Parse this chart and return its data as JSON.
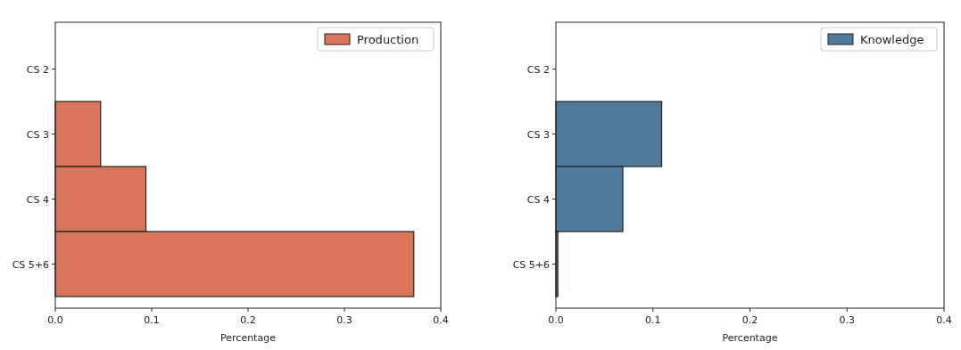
{
  "chart_data": [
    {
      "type": "bar",
      "orientation": "horizontal",
      "categories": [
        "CS 2",
        "CS 3",
        "CS 4",
        "CS 5+6"
      ],
      "xlabel": "Percentage",
      "xlim": [
        0,
        0.4
      ],
      "xticks": [
        {
          "value": 0,
          "label": "0.0"
        },
        0.1,
        0.2,
        0.3,
        0.4
      ],
      "legend": "top right",
      "grid": false,
      "series": [
        {
          "name": "Production",
          "color": "#d9765a",
          "values": [
            0,
            0.047,
            0.094,
            0.372
          ]
        }
      ]
    },
    {
      "type": "bar",
      "orientation": "horizontal",
      "categories": [
        "CS 2",
        "CS 3",
        "CS 4",
        "CS 5+6"
      ],
      "xlabel": "Percentage",
      "xlim": [
        0,
        0.4
      ],
      "xticks": [
        {
          "value": 0,
          "label": "0.0"
        },
        0.1,
        0.2,
        0.3,
        0.4
      ],
      "legend": "top right",
      "grid": false,
      "series": [
        {
          "name": "Knowledge",
          "color": "#4f7a9c",
          "values": [
            0,
            0.109,
            0.069,
            0.002
          ]
        }
      ]
    }
  ]
}
